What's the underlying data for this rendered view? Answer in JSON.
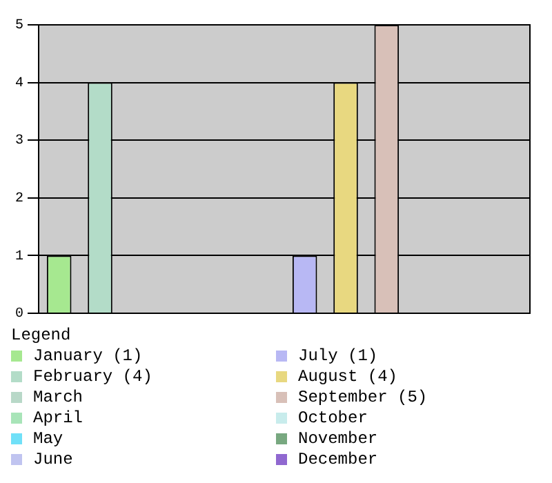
{
  "chart_data": {
    "type": "bar",
    "legend_title": "Legend",
    "legend": "bottom",
    "grid": "y",
    "ylim": [
      0,
      5
    ],
    "yticks": [
      0,
      1,
      2,
      3,
      4,
      5
    ],
    "categories": [
      null,
      null,
      null,
      null,
      null,
      null,
      null,
      null,
      null,
      null,
      null,
      null
    ],
    "series": [
      {
        "name": "January (1)",
        "color": "#a6e890",
        "values": [
          1,
          null,
          null,
          null,
          null,
          null,
          null,
          null,
          null,
          null,
          null,
          null
        ]
      },
      {
        "name": "February (4)",
        "color": "#b3dcc8",
        "values": [
          null,
          4,
          null,
          null,
          null,
          null,
          null,
          null,
          null,
          null,
          null,
          null
        ]
      },
      {
        "name": "March",
        "color": "#b8d8c8",
        "values": [
          null,
          null,
          0,
          null,
          null,
          null,
          null,
          null,
          null,
          null,
          null,
          null
        ]
      },
      {
        "name": "April",
        "color": "#a8e4b8",
        "values": [
          null,
          null,
          null,
          0,
          null,
          null,
          null,
          null,
          null,
          null,
          null,
          null
        ]
      },
      {
        "name": "May",
        "color": "#70e0f8",
        "values": [
          null,
          null,
          null,
          null,
          0,
          null,
          null,
          null,
          null,
          null,
          null,
          null
        ]
      },
      {
        "name": "June",
        "color": "#c0c4f0",
        "values": [
          null,
          null,
          null,
          null,
          null,
          0,
          null,
          null,
          null,
          null,
          null,
          null
        ]
      },
      {
        "name": "July (1)",
        "color": "#b8b8f4",
        "values": [
          null,
          null,
          null,
          null,
          null,
          null,
          1,
          null,
          null,
          null,
          null,
          null
        ]
      },
      {
        "name": "August (4)",
        "color": "#e8d880",
        "values": [
          null,
          null,
          null,
          null,
          null,
          null,
          null,
          4,
          null,
          null,
          null,
          null
        ]
      },
      {
        "name": "September (5)",
        "color": "#d8c0b8",
        "values": [
          null,
          null,
          null,
          null,
          null,
          null,
          null,
          null,
          5,
          null,
          null,
          null
        ]
      },
      {
        "name": "October",
        "color": "#c8ecec",
        "values": [
          null,
          null,
          null,
          null,
          null,
          null,
          null,
          null,
          null,
          0,
          null,
          null
        ]
      },
      {
        "name": "November",
        "color": "#78a880",
        "values": [
          null,
          null,
          null,
          null,
          null,
          null,
          null,
          null,
          null,
          null,
          0,
          null
        ]
      },
      {
        "name": "December",
        "color": "#9068d0",
        "values": [
          null,
          null,
          null,
          null,
          null,
          null,
          null,
          null,
          null,
          null,
          null,
          0
        ]
      }
    ]
  }
}
